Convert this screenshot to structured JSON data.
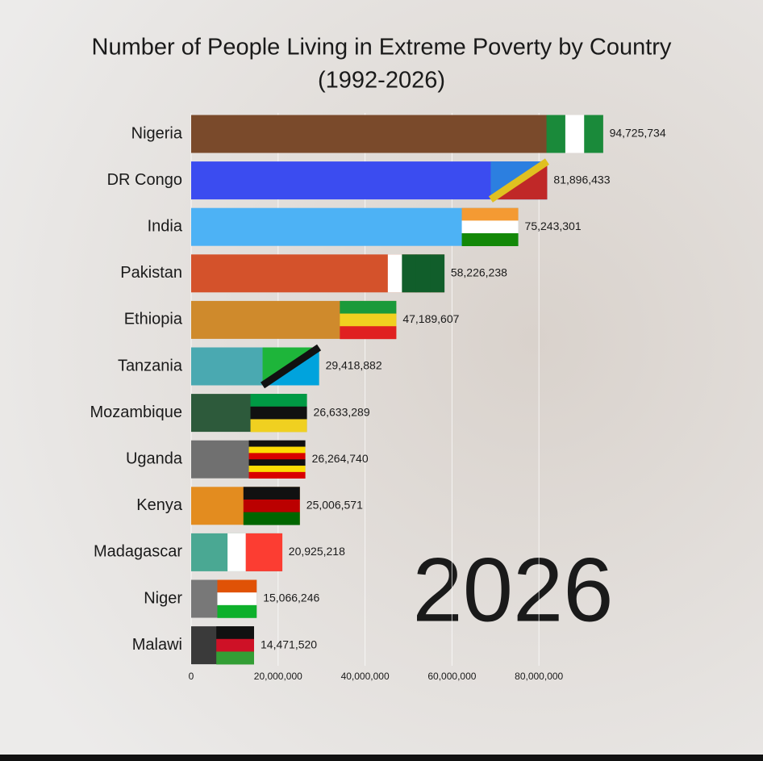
{
  "chart_data": {
    "type": "bar",
    "orientation": "horizontal",
    "title": "Number of People Living in Extreme Poverty by Country",
    "subtitle": "(1992-2026)",
    "annotation": "2026",
    "categories": [
      "Nigeria",
      "DR Congo",
      "India",
      "Pakistan",
      "Ethiopia",
      "Tanzania",
      "Mozambique",
      "Uganda",
      "Kenya",
      "Madagascar",
      "Niger",
      "Malawi"
    ],
    "values": [
      94725734,
      81896433,
      75243301,
      58226238,
      47189607,
      29418882,
      26633289,
      26264740,
      25006571,
      20925218,
      15066246,
      14471520
    ],
    "value_labels": [
      "94,725,734",
      "81,896,433",
      "75,243,301",
      "58,226,238",
      "47,189,607",
      "29,418,882",
      "26,633,289",
      "26,264,740",
      "25,006,571",
      "20,925,218",
      "15,066,246",
      "14,471,520"
    ],
    "colors": [
      "#7a4a2b",
      "#3b4cf0",
      "#4db2f5",
      "#d4522b",
      "#cf8a2c",
      "#4aa9b1",
      "#2d5a3b",
      "#707070",
      "#e38c1f",
      "#4aa893",
      "#787878",
      "#3a3a3a"
    ],
    "xlim": [
      0,
      100000000
    ],
    "xticks": [
      0,
      {
        "value": 20000000,
        "label": "20,000,000"
      },
      {
        "value": 40000000,
        "label": "40,000,000"
      },
      {
        "value": 60000000,
        "label": "60,000,000"
      },
      {
        "value": 80000000,
        "label": "80,000,000"
      }
    ],
    "grid": true
  }
}
